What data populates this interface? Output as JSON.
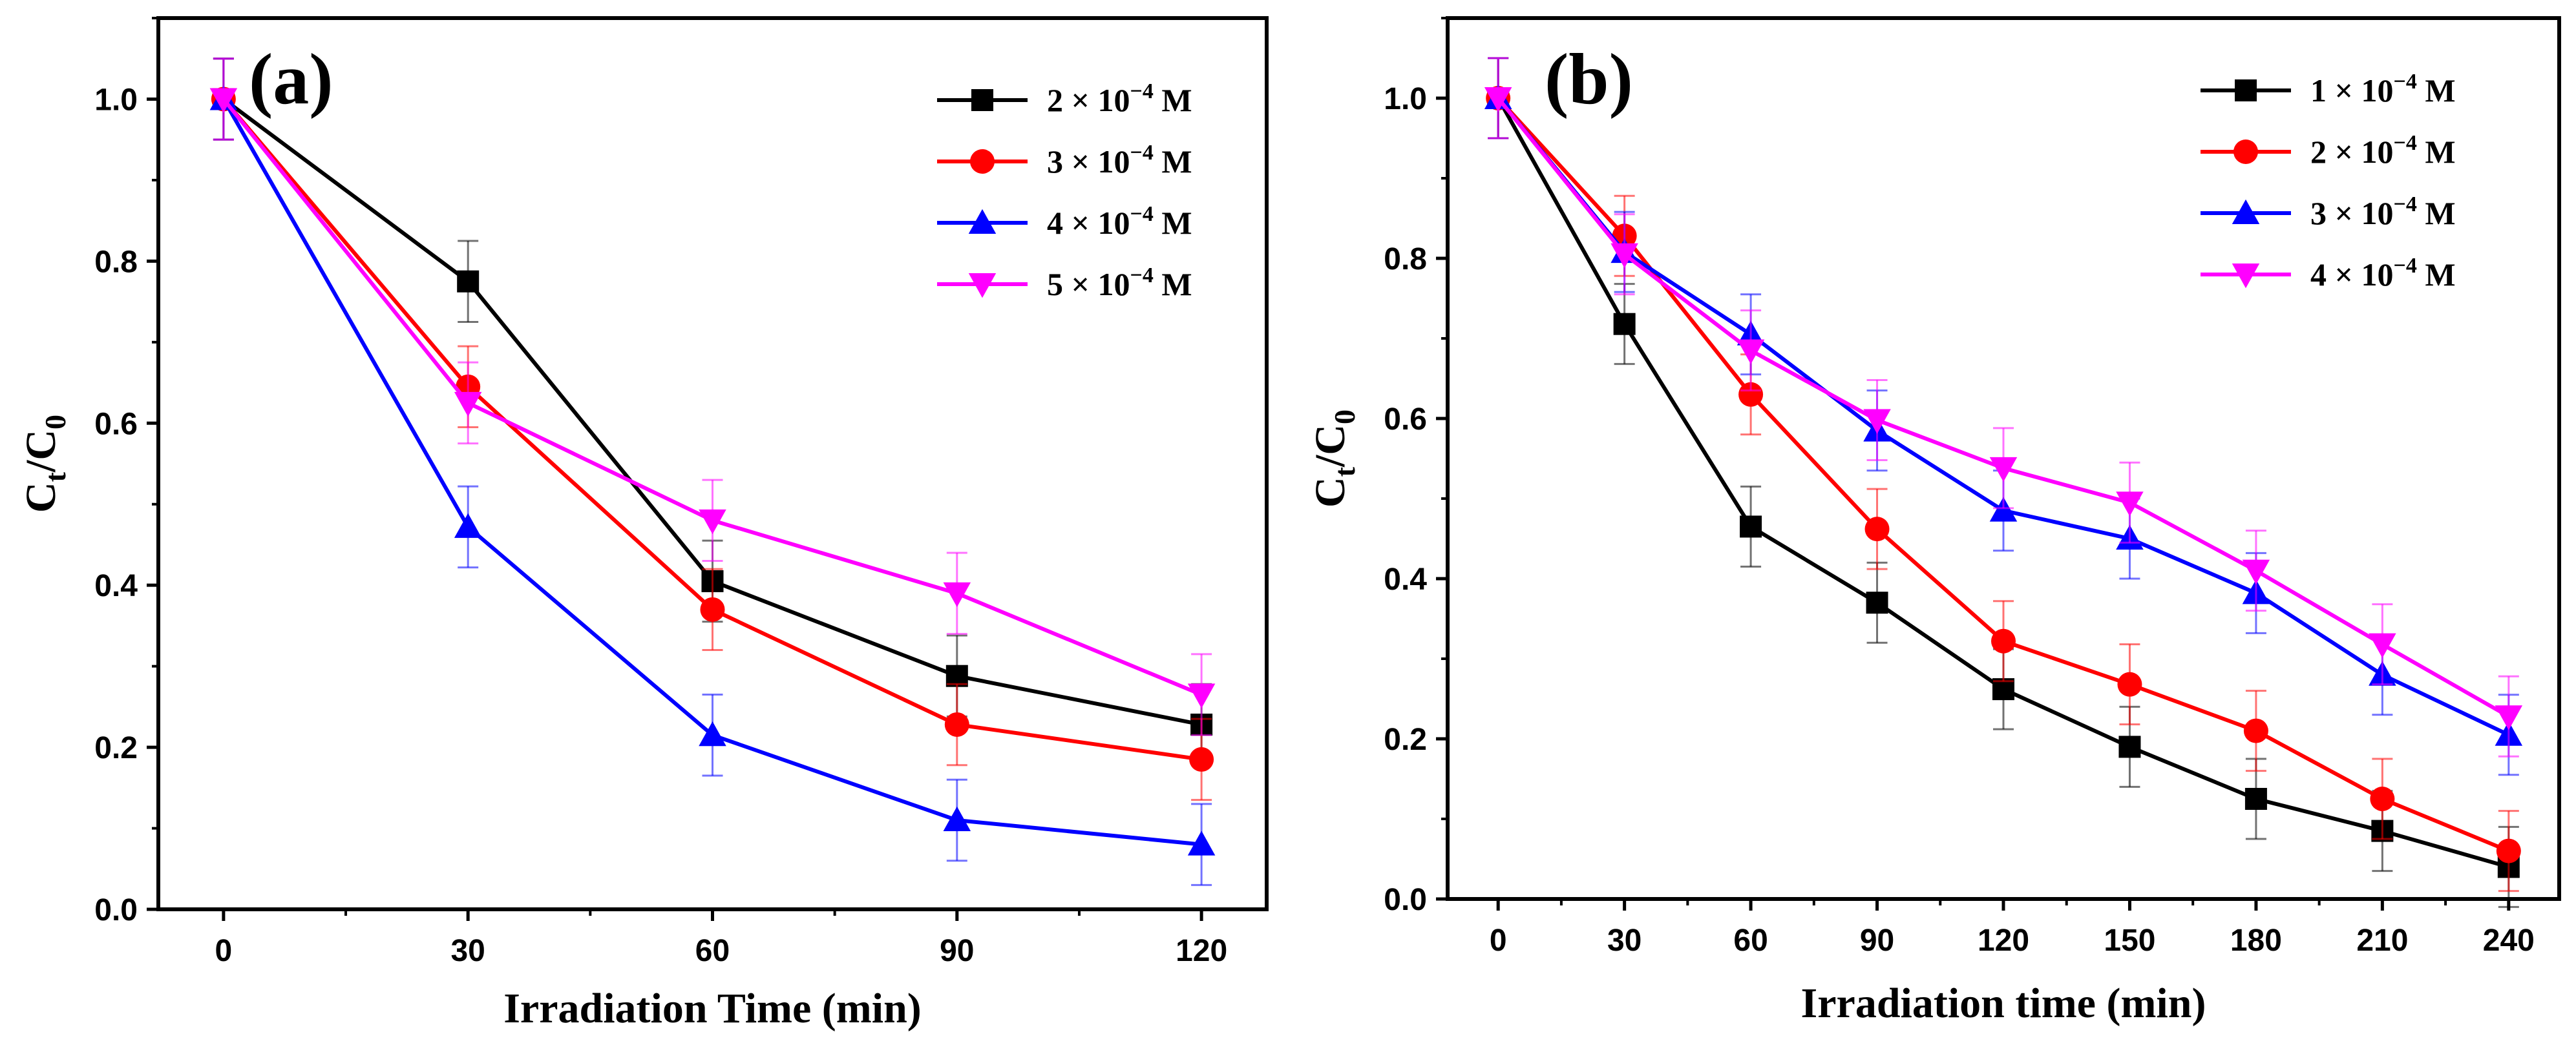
{
  "chart_data": [
    {
      "type": "line",
      "panel_label": "(a)",
      "xlabel": "Irradiation Time (min)",
      "ylabel_main": "C",
      "ylabel_sub1": "t",
      "ylabel_mid": "/C",
      "ylabel_sub2": "0",
      "xlim": [
        -8,
        128
      ],
      "ylim": [
        0,
        1.1
      ],
      "xticks": [
        0,
        30,
        60,
        90,
        120
      ],
      "yticks": [
        0.0,
        0.2,
        0.4,
        0.6,
        0.8,
        1.0
      ],
      "ytick_labels": [
        "0.0",
        "0.2",
        "0.4",
        "0.6",
        "0.8",
        "1.0"
      ],
      "legend_position": "top-right",
      "x": [
        0,
        30,
        60,
        90,
        120
      ],
      "series": [
        {
          "name": "2 × 10⁻⁴ M",
          "legend_prefix": "2 × 10",
          "legend_exp": "−4",
          "legend_suffix": " M",
          "color": "#000000",
          "marker": "square",
          "values": [
            1.0,
            0.775,
            0.405,
            0.288,
            0.228
          ]
        },
        {
          "name": "3 × 10⁻⁴ M",
          "legend_prefix": "3 × 10",
          "legend_exp": "−4",
          "legend_suffix": " M",
          "color": "#ff0000",
          "marker": "circle",
          "values": [
            1.0,
            0.645,
            0.37,
            0.228,
            0.185
          ]
        },
        {
          "name": "4 × 10⁻⁴ M",
          "legend_prefix": "4 × 10",
          "legend_exp": "−4",
          "legend_suffix": " M",
          "color": "#0000ff",
          "marker": "triangle-up",
          "values": [
            1.0,
            0.472,
            0.215,
            0.11,
            0.08
          ]
        },
        {
          "name": "5 × 10⁻⁴ M",
          "legend_prefix": "5 × 10",
          "legend_exp": "−4",
          "legend_suffix": " M",
          "color": "#ff00ff",
          "marker": "triangle-down",
          "values": [
            1.0,
            0.625,
            0.48,
            0.39,
            0.265
          ]
        }
      ],
      "error": 0.05
    },
    {
      "type": "line",
      "panel_label": "(b)",
      "xlabel": "Irradiation time (min)",
      "ylabel_main": "C",
      "ylabel_sub1": "t",
      "ylabel_mid": "/C",
      "ylabel_sub2": "0",
      "xlim": [
        -12,
        252
      ],
      "ylim": [
        0,
        1.1
      ],
      "xticks": [
        0,
        30,
        60,
        90,
        120,
        150,
        180,
        210,
        240
      ],
      "yticks": [
        0.0,
        0.2,
        0.4,
        0.6,
        0.8,
        1.0
      ],
      "ytick_labels": [
        "0.0",
        "0.2",
        "0.4",
        "0.6",
        "0.8",
        "1.0"
      ],
      "legend_position": "top-right",
      "x": [
        0,
        30,
        60,
        90,
        120,
        150,
        180,
        210,
        240
      ],
      "series": [
        {
          "name": "1 × 10⁻⁴ M",
          "legend_prefix": "1 × 10",
          "legend_exp": "−4",
          "legend_suffix": " M",
          "color": "#000000",
          "marker": "square",
          "values": [
            1.0,
            0.718,
            0.465,
            0.37,
            0.262,
            0.19,
            0.125,
            0.085,
            0.04
          ]
        },
        {
          "name": "2 × 10⁻⁴ M",
          "legend_prefix": "2 × 10",
          "legend_exp": "−4",
          "legend_suffix": " M",
          "color": "#ff0000",
          "marker": "circle",
          "values": [
            1.0,
            0.828,
            0.63,
            0.462,
            0.322,
            0.268,
            0.21,
            0.125,
            0.06
          ]
        },
        {
          "name": "3 × 10⁻⁴ M",
          "legend_prefix": "3 × 10",
          "legend_exp": "−4",
          "legend_suffix": " M",
          "color": "#0000ff",
          "marker": "triangle-up",
          "values": [
            1.0,
            0.808,
            0.705,
            0.585,
            0.485,
            0.45,
            0.382,
            0.28,
            0.205
          ]
        },
        {
          "name": "4 × 10⁻⁴ M",
          "legend_prefix": "4 × 10",
          "legend_exp": "−4",
          "legend_suffix": " M",
          "color": "#ff00ff",
          "marker": "triangle-down",
          "values": [
            1.0,
            0.805,
            0.685,
            0.598,
            0.538,
            0.495,
            0.41,
            0.318,
            0.228
          ]
        }
      ],
      "error": 0.05
    }
  ]
}
